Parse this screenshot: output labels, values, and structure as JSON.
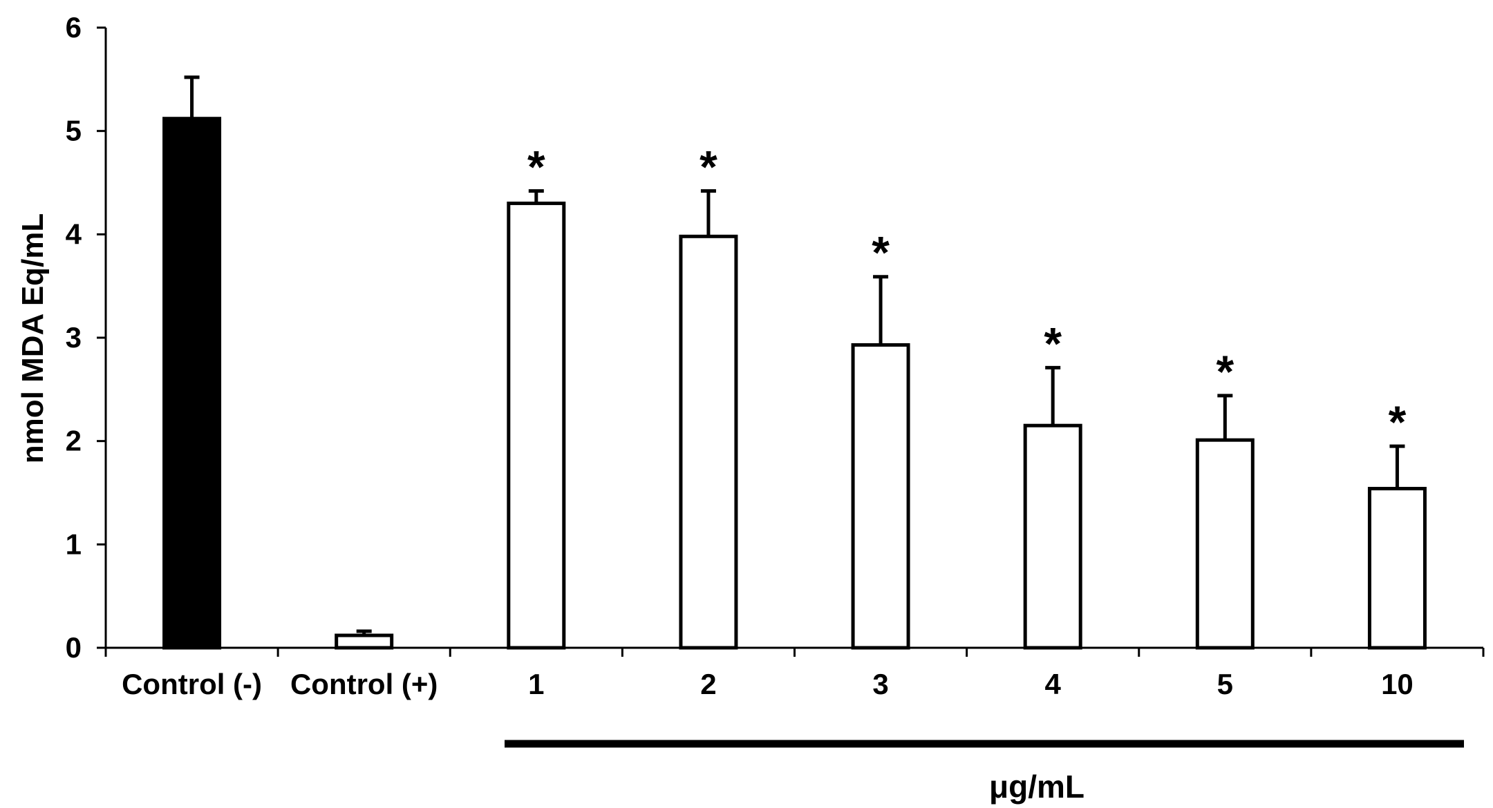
{
  "chart_data": {
    "type": "bar",
    "title": "",
    "xlabel": "",
    "ylabel": "nmol MDA Eq/mL",
    "ylim": [
      0,
      6
    ],
    "yticks": [
      0,
      1,
      2,
      3,
      4,
      5,
      6
    ],
    "categories": [
      "Control (-)",
      "Control (+)",
      "1",
      "2",
      "3",
      "4",
      "5",
      "10"
    ],
    "values": [
      5.12,
      0.12,
      4.3,
      3.98,
      2.93,
      2.15,
      2.01,
      1.54
    ],
    "errors": [
      0.4,
      0.04,
      0.12,
      0.44,
      0.66,
      0.56,
      0.43,
      0.41
    ],
    "significance": [
      "",
      "",
      "*",
      "*",
      "*",
      "*",
      "*",
      "*"
    ],
    "bar_fill": [
      "#000000",
      "#ffffff",
      "#ffffff",
      "#ffffff",
      "#ffffff",
      "#ffffff",
      "#ffffff",
      "#ffffff"
    ],
    "group_label": "μg/mL",
    "grid": false,
    "legend": "none"
  }
}
